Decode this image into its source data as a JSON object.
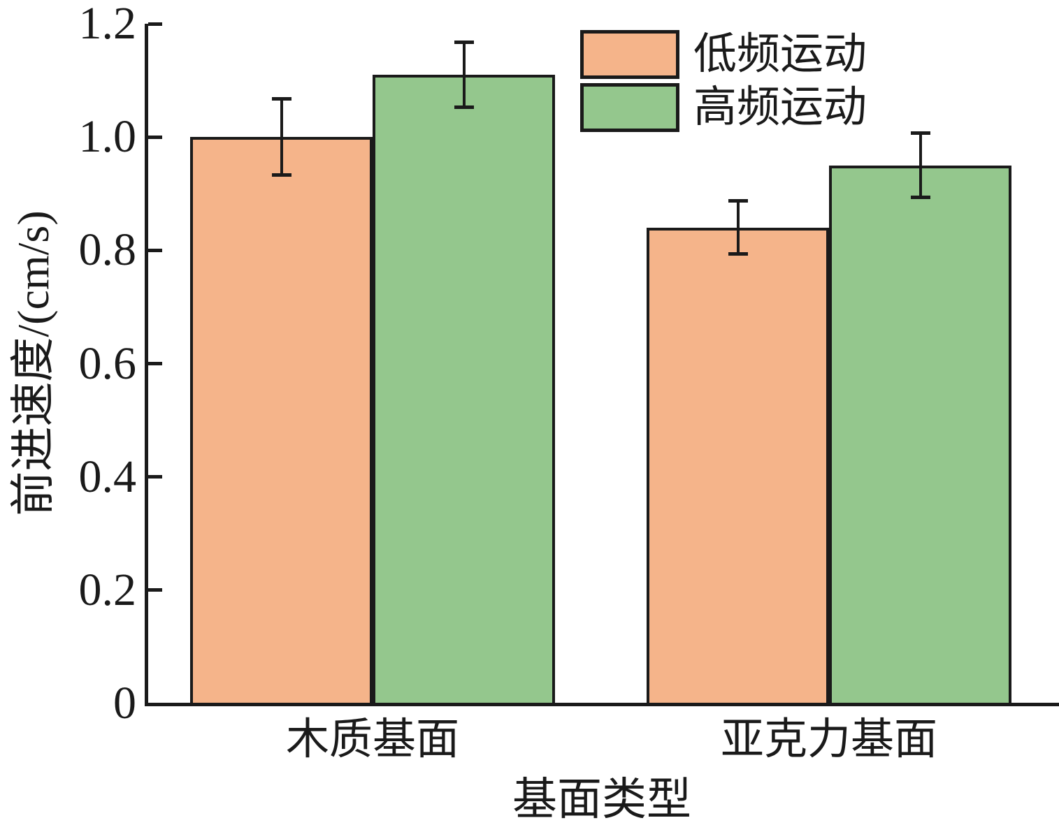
{
  "figure": {
    "background": "#ffffff",
    "axis_color": "#1a1a1a"
  },
  "chart_data": {
    "type": "bar",
    "title": "",
    "categories": [
      "木质基面",
      "亚克力基面"
    ],
    "series": [
      {
        "name": "低频运动",
        "color": "#F5B48A",
        "values": [
          1.0,
          0.84
        ],
        "errors": [
          0.07,
          0.05
        ]
      },
      {
        "name": "高频运动",
        "color": "#94C78D",
        "values": [
          1.11,
          0.95
        ],
        "errors": [
          0.06,
          0.06
        ]
      }
    ],
    "xlabel": "基面类型",
    "ylabel": "前进速度/(cm/s)",
    "ylim": [
      0,
      1.2
    ],
    "yticks": [
      0,
      0.2,
      0.4,
      0.6,
      0.8,
      1.0,
      1.2
    ],
    "ytick_labels": [
      "0",
      "0.2",
      "0.4",
      "0.6",
      "0.8",
      "1.0",
      "1.2"
    ],
    "grid": false,
    "error_bars": true,
    "legend_position": "top-center",
    "bar_edge_color": "#1a1a1a"
  }
}
